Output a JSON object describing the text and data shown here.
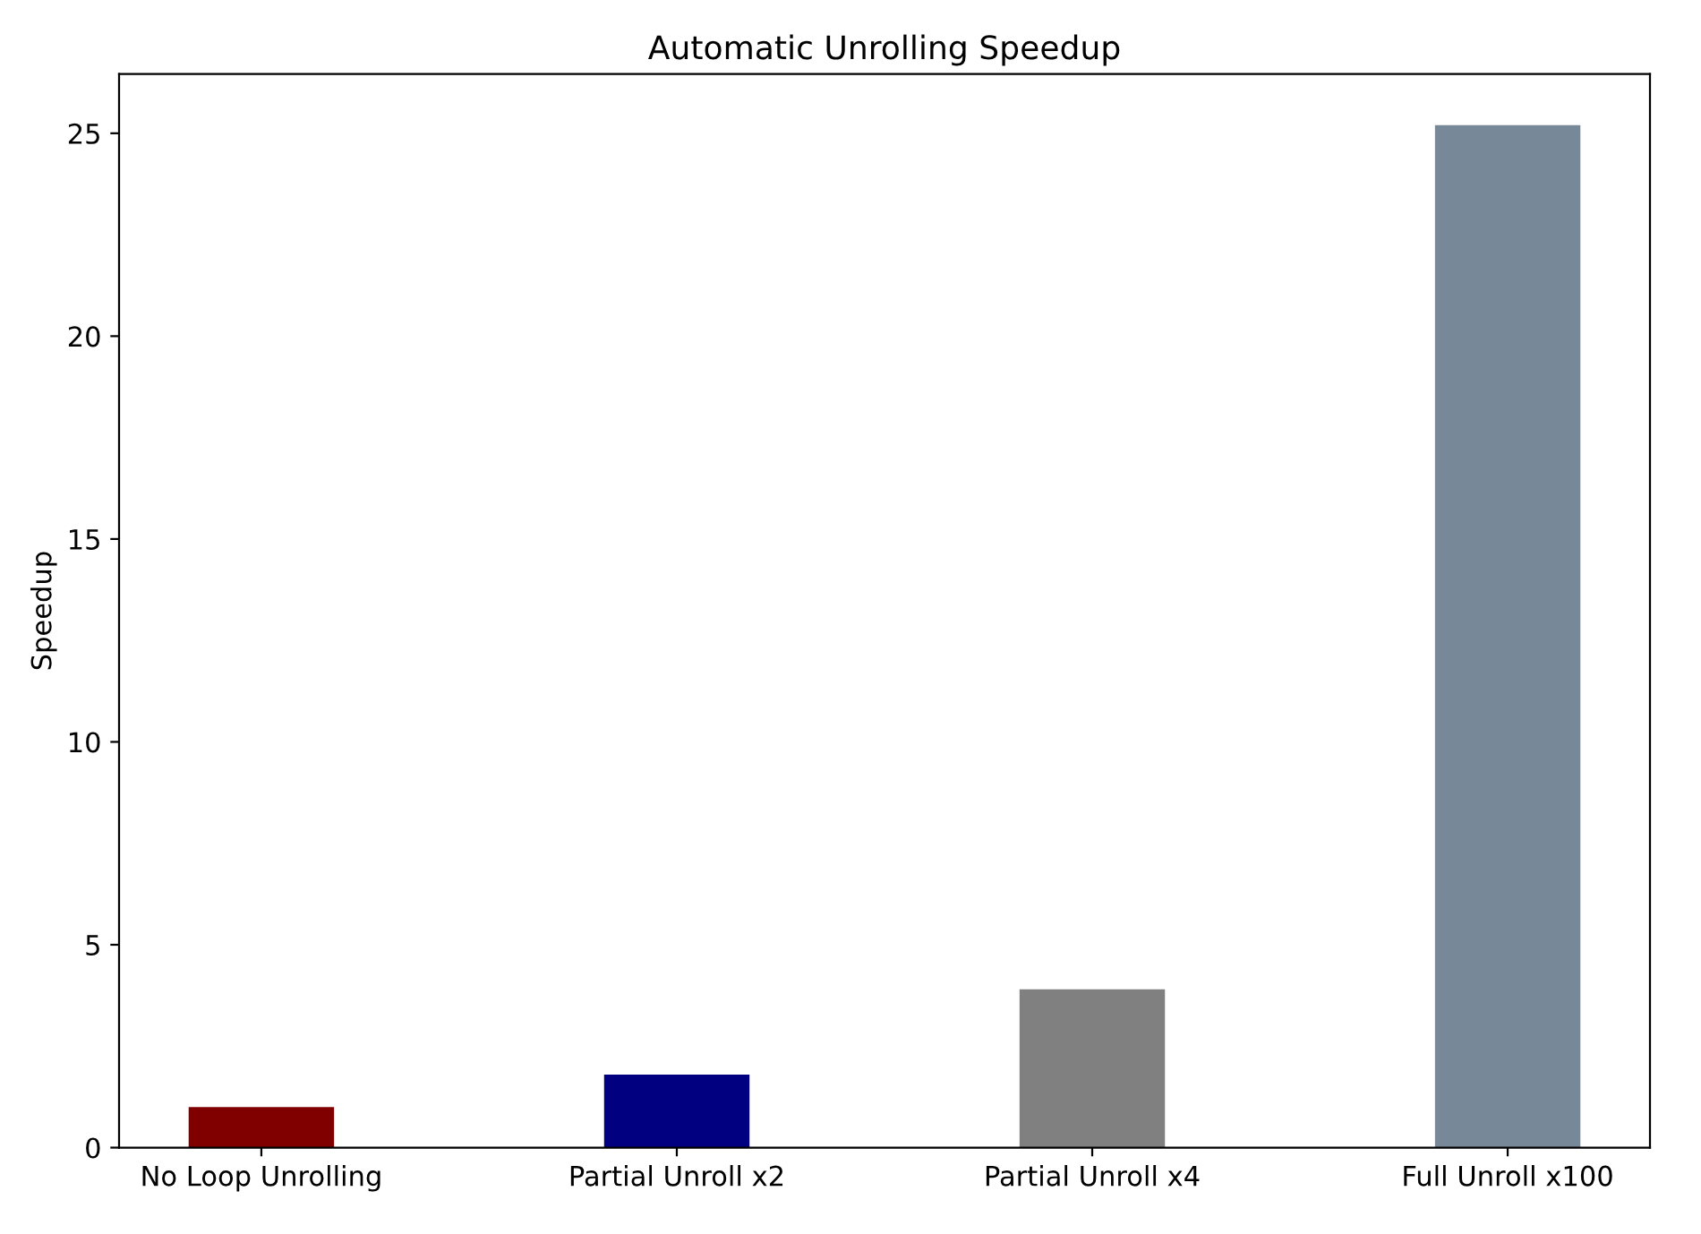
{
  "chart_data": {
    "type": "bar",
    "title": "Automatic Unrolling Speedup",
    "ylabel": "Speedup",
    "categories": [
      "No Loop Unrolling",
      "Partial Unroll x2",
      "Partial Unroll x4",
      "Full Unroll x100"
    ],
    "values": [
      1.0,
      1.8,
      3.9,
      25.2
    ],
    "colors": [
      "#800000",
      "#000080",
      "#808080",
      "#778899"
    ],
    "ylim": [
      0,
      26.46
    ],
    "yticks": [
      0,
      5,
      10,
      15,
      20,
      25
    ],
    "grid": false,
    "legend": false
  }
}
